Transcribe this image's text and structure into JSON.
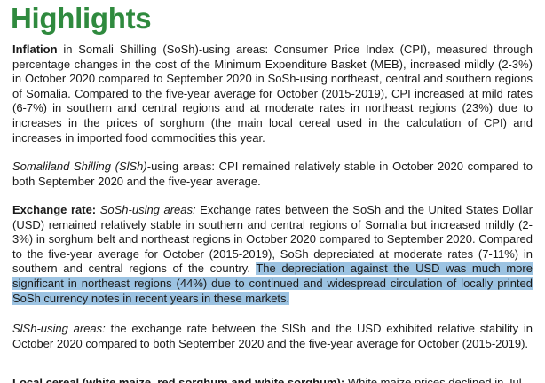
{
  "header": {
    "title": "Highlights"
  },
  "paragraphs": [
    [
      "Inflation",
      "in Somali Shilling (SoSh)-using areas: Consumer Price Index (CPI), measured through percentage changes in the cost of the Minimum Expenditure Basket (MEB), increased mildly (2-3%) in October 2020 compared to September 2020 in SoSh-using northeast, central and southern regions of Somalia. Compared to the five-year average for October (2015-2019), CPI increased at mild rates (6-7%) in southern and central regions and at moderate rates in northeast regions (23%) due to increases in the prices of sorghum (the main local cereal used in the calculation of CPI) and increases in imported food commodities this year."
    ],
    [
      "Somaliland Shilling (SlSh)",
      "-using areas: CPI remained relatively stable in October 2020 compared to both September 2020 and the five-year average."
    ],
    [
      "Exchange rate:",
      "SoSh-using areas:",
      "Exchange rates between the SoSh and the United States Dollar (USD) remained relatively stable in southern and central regions of Somalia but increased mildly (2-3%) in sorghum belt and northeast regions in October 2020 compared to September 2020. Compared to the five-year average for October (2015-2019), SoSh depreciated at moderate rates (7-11%) in southern and central regions of the country.",
      "The depreciation against the USD was much more significant in northeast regions (44%) due to continued and widespread circulation of locally printed SoSh currency notes in recent years in these markets."
    ],
    [
      "SlSh-using areas:",
      "the exchange rate between the SlSh and the USD exhibited relative stability in October 2020 compared to both September 2020 and the five-year average for October (2015-2019)."
    ],
    [
      "Local cereal (white maize, red sorghum and white sorghum):",
      "White maize prices declined in Jul"
    ]
  ]
}
